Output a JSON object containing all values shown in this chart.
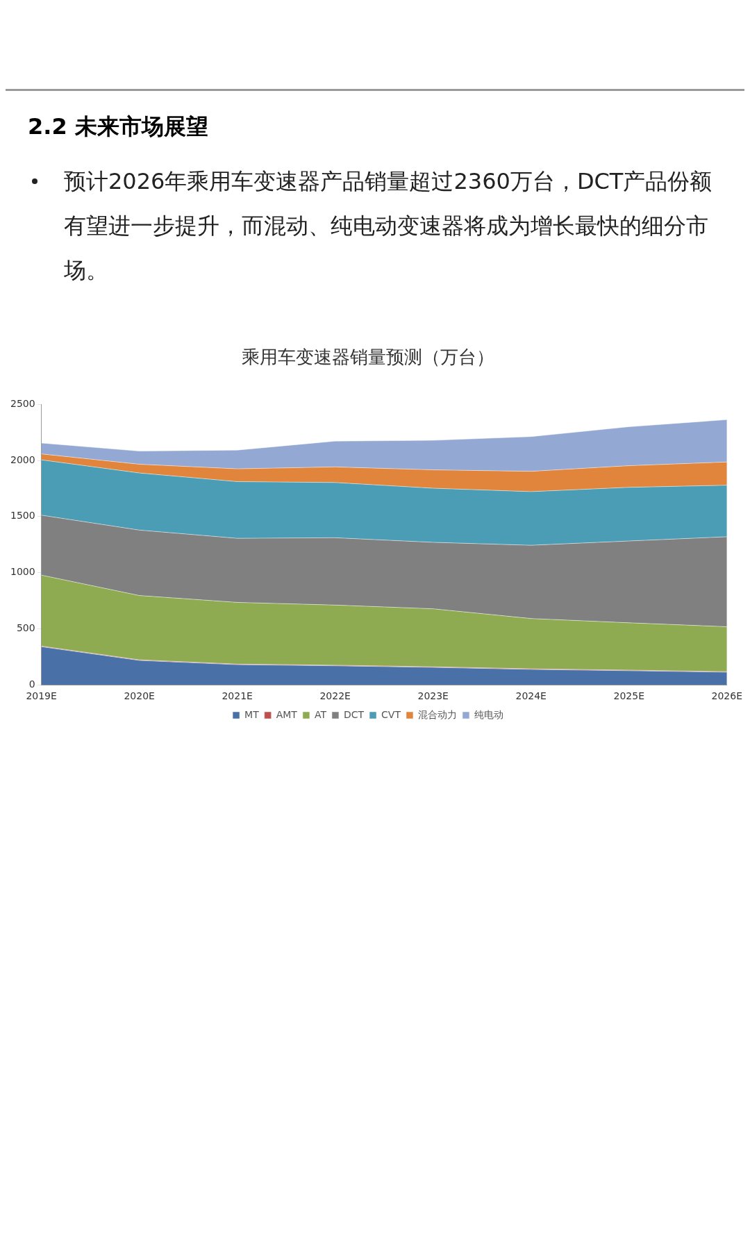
{
  "chart_data": {
    "type": "area",
    "stacked": true,
    "title": "乘用车变速器销量预测（万台）",
    "annotations": [
      "2.2 未来市场展望",
      "预计2026年乘用车变速器产品销量超过2360万台，DCT产品份额有望进一步提升，而混动、纯电动变速器将成为增长最快的细分市场。"
    ],
    "categories": [
      "2019E",
      "2020E",
      "2021E",
      "2022E",
      "2023E",
      "2024E",
      "2025E",
      "2026E"
    ],
    "series": [
      {
        "name": "MT",
        "color": "#4a70a8",
        "values": [
          340,
          218,
          180,
          170,
          156,
          138,
          126,
          113
        ]
      },
      {
        "name": "AMT",
        "color": "#c0504d",
        "values": [
          5,
          5,
          5,
          5,
          5,
          5,
          5,
          5
        ]
      },
      {
        "name": "AT",
        "color": "#8eab52",
        "values": [
          633,
          573,
          550,
          536,
          517,
          448,
          422,
          400
        ]
      },
      {
        "name": "DCT",
        "color": "#808080",
        "values": [
          534,
          583,
          571,
          600,
          592,
          653,
          729,
          802
        ]
      },
      {
        "name": "CVT",
        "color": "#4a9db4",
        "values": [
          493,
          509,
          505,
          492,
          482,
          478,
          478,
          459
        ]
      },
      {
        "name": "混合动力",
        "color": "#e2853c",
        "values": [
          53,
          78,
          114,
          139,
          164,
          181,
          193,
          207
        ]
      },
      {
        "name": "纯电动",
        "color": "#93a8d2",
        "values": [
          97,
          117,
          167,
          230,
          263,
          309,
          347,
          377
        ]
      }
    ],
    "ylim": [
      0,
      2500
    ],
    "yticks": [
      0,
      500,
      1000,
      1500,
      2000,
      2500
    ],
    "legend": "bottom",
    "grid": false
  }
}
